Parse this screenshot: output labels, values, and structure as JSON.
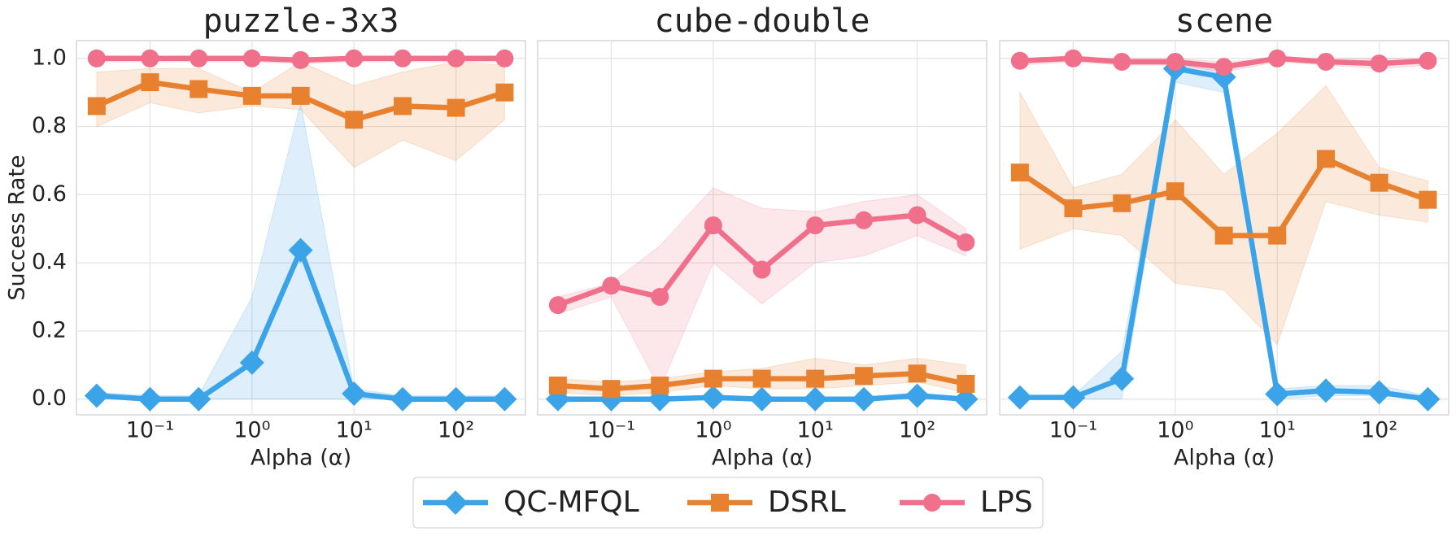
{
  "chart_data": [
    {
      "type": "line",
      "title": "puzzle-3x3",
      "xlabel": "Alpha (α)",
      "ylabel": "Success Rate",
      "xscale": "log",
      "grid": true,
      "legend": "lower center",
      "x": [
        0.03,
        0.1,
        0.3,
        1,
        3,
        10,
        30,
        100,
        300
      ],
      "xlim": [
        0.019,
        480
      ],
      "xticks": [
        {
          "value": 0.1,
          "label": "10⁻¹"
        },
        {
          "value": 1,
          "label": "10⁰"
        },
        {
          "value": 10,
          "label": "10¹"
        },
        {
          "value": 100,
          "label": "10²"
        }
      ],
      "ylim": [
        -0.046,
        1.052
      ],
      "yticks": [
        {
          "value": 0,
          "label": "0.0"
        },
        0.2,
        0.4,
        0.6,
        0.8,
        {
          "value": 1,
          "label": "1.0"
        }
      ],
      "series": [
        {
          "name": "QC-MFQL",
          "color": "#3ba3e8",
          "marker": "diamond",
          "values": [
            0.01,
            0,
            0,
            0.107,
            0.437,
            0.016,
            0,
            0,
            0
          ],
          "lower": [
            0,
            0,
            0,
            0,
            0,
            0,
            0,
            0,
            0
          ],
          "upper": [
            0.02,
            0.01,
            0.01,
            0.3,
            0.87,
            0.03,
            0.01,
            0.01,
            0.01
          ]
        },
        {
          "name": "DSRL",
          "color": "#e8812f",
          "marker": "square",
          "values": [
            0.86,
            0.93,
            0.91,
            0.89,
            0.89,
            0.82,
            0.86,
            0.855,
            0.9
          ],
          "lower": [
            0.8,
            0.87,
            0.84,
            0.86,
            0.85,
            0.68,
            0.76,
            0.7,
            0.82
          ],
          "upper": [
            0.96,
            0.97,
            0.97,
            0.9,
            0.99,
            0.92,
            0.96,
            0.99,
            0.98
          ]
        },
        {
          "name": "LPS",
          "color": "#f06f8a",
          "marker": "circle",
          "values": [
            1,
            1,
            1,
            1,
            0.995,
            1,
            1,
            1,
            1
          ],
          "lower": [
            0.99,
            0.99,
            0.99,
            0.99,
            0.985,
            0.99,
            0.99,
            0.99,
            0.99
          ],
          "upper": [
            1,
            1,
            1,
            1,
            1,
            1,
            1,
            1,
            1
          ]
        }
      ]
    },
    {
      "type": "line",
      "title": "cube-double",
      "xlabel": "Alpha (α)",
      "xscale": "log",
      "grid": true,
      "sharey": true,
      "x": [
        0.03,
        0.1,
        0.3,
        1,
        3,
        10,
        30,
        100,
        300
      ],
      "xlim": [
        0.019,
        480
      ],
      "xticks": [
        {
          "value": 0.1,
          "label": "10⁻¹"
        },
        {
          "value": 1,
          "label": "10⁰"
        },
        {
          "value": 10,
          "label": "10¹"
        },
        {
          "value": 100,
          "label": "10²"
        }
      ],
      "ylim": [
        -0.046,
        1.052
      ],
      "yticks": [
        0,
        0.2,
        0.4,
        0.6,
        0.8,
        1
      ],
      "series": [
        {
          "name": "QC-MFQL",
          "color": "#3ba3e8",
          "marker": "diamond",
          "values": [
            0,
            0,
            0,
            0.005,
            0,
            0,
            0,
            0.01,
            0
          ],
          "lower": [
            0,
            0,
            0,
            0,
            0,
            0,
            0,
            0,
            0
          ],
          "upper": [
            0.005,
            0.005,
            0.005,
            0.01,
            0.005,
            0.005,
            0.005,
            0.02,
            0.005
          ]
        },
        {
          "name": "DSRL",
          "color": "#e8812f",
          "marker": "square",
          "values": [
            0.04,
            0.03,
            0.04,
            0.06,
            0.06,
            0.06,
            0.068,
            0.075,
            0.045
          ],
          "lower": [
            0.02,
            0.01,
            0.02,
            0.04,
            0.03,
            0.03,
            0.04,
            0.05,
            0.02
          ],
          "upper": [
            0.06,
            0.05,
            0.06,
            0.08,
            0.09,
            0.12,
            0.1,
            0.12,
            0.1
          ]
        },
        {
          "name": "LPS",
          "color": "#f06f8a",
          "marker": "circle",
          "values": [
            0.276,
            0.333,
            0.3,
            0.51,
            0.38,
            0.51,
            0.525,
            0.54,
            0.46
          ],
          "lower": [
            0.25,
            0.3,
            0.03,
            0.4,
            0.28,
            0.4,
            0.42,
            0.48,
            0.42
          ],
          "upper": [
            0.3,
            0.34,
            0.45,
            0.62,
            0.56,
            0.55,
            0.58,
            0.6,
            0.5
          ]
        }
      ]
    },
    {
      "type": "line",
      "title": "scene",
      "xlabel": "Alpha (α)",
      "xscale": "log",
      "grid": true,
      "sharey": true,
      "x": [
        0.03,
        0.1,
        0.3,
        1,
        3,
        10,
        30,
        100,
        300
      ],
      "xlim": [
        0.019,
        480
      ],
      "xticks": [
        {
          "value": 0.1,
          "label": "10⁻¹"
        },
        {
          "value": 1,
          "label": "10⁰"
        },
        {
          "value": 10,
          "label": "10¹"
        },
        {
          "value": 100,
          "label": "10²"
        }
      ],
      "ylim": [
        -0.046,
        1.052
      ],
      "yticks": [
        0,
        0.2,
        0.4,
        0.6,
        0.8,
        1
      ],
      "series": [
        {
          "name": "QC-MFQL",
          "color": "#3ba3e8",
          "marker": "diamond",
          "values": [
            0.005,
            0.005,
            0.06,
            0.97,
            0.945,
            0.015,
            0.025,
            0.02,
            0
          ],
          "lower": [
            0,
            0,
            0,
            0.93,
            0.9,
            0,
            0.01,
            0.01,
            0
          ],
          "upper": [
            0.01,
            0.01,
            0.14,
            0.99,
            0.97,
            0.03,
            0.04,
            0.04,
            0.01
          ]
        },
        {
          "name": "DSRL",
          "color": "#e8812f",
          "marker": "square",
          "values": [
            0.665,
            0.56,
            0.575,
            0.61,
            0.48,
            0.48,
            0.705,
            0.635,
            0.585
          ],
          "lower": [
            0.44,
            0.5,
            0.48,
            0.34,
            0.32,
            0.16,
            0.58,
            0.54,
            0.52
          ],
          "upper": [
            0.9,
            0.62,
            0.66,
            0.82,
            0.66,
            0.78,
            0.92,
            0.68,
            0.64
          ]
        },
        {
          "name": "LPS",
          "color": "#f06f8a",
          "marker": "circle",
          "values": [
            0.993,
            1,
            0.99,
            0.99,
            0.975,
            1,
            0.99,
            0.985,
            0.993
          ],
          "lower": [
            0.98,
            0.99,
            0.98,
            0.98,
            0.96,
            0.99,
            0.98,
            0.97,
            0.98
          ],
          "upper": [
            1,
            1,
            1,
            1,
            0.99,
            1,
            1,
            1,
            1
          ]
        }
      ]
    }
  ]
}
